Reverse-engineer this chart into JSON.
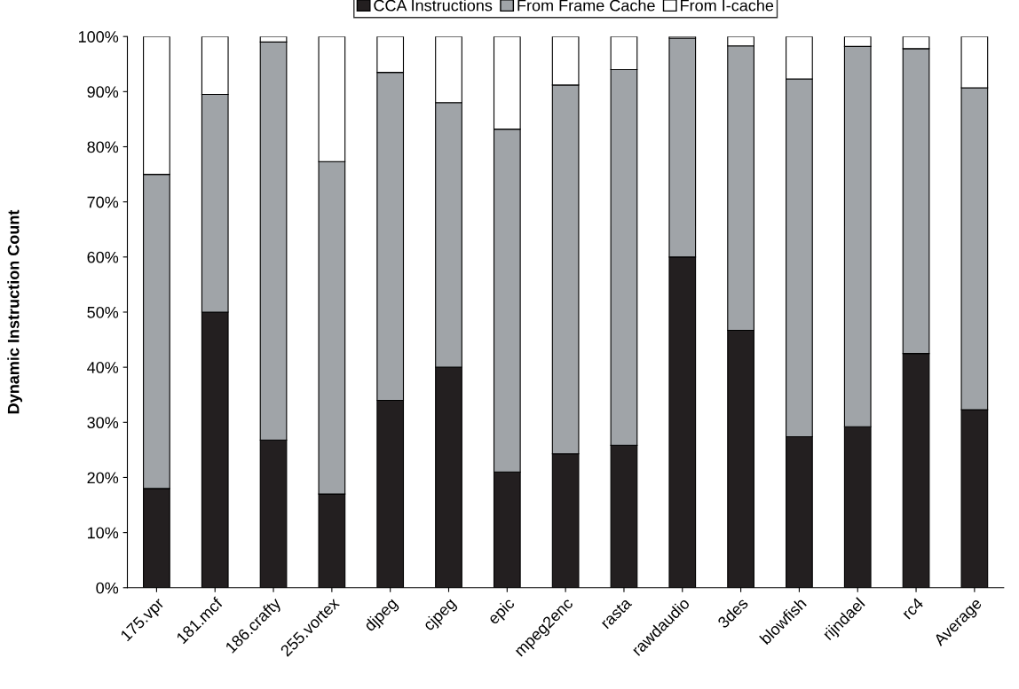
{
  "chart_data": {
    "type": "bar",
    "stacked": true,
    "ylabel": "Dynamic Instruction Count",
    "categories": [
      "175.vpr",
      "181.mcf",
      "186.crafty",
      "255.vortex",
      "djpeg",
      "cjpeg",
      "epic",
      "mpeg2enc",
      "rasta",
      "rawdaudio",
      "3des",
      "blowfish",
      "rijndael",
      "rc4",
      "Average"
    ],
    "series": [
      {
        "name": "CCA Instructions",
        "color": "#231f20",
        "values": [
          18,
          50,
          26.8,
          17,
          34,
          40,
          21,
          24.3,
          25.8,
          60,
          46.7,
          27.4,
          29.2,
          42.5,
          32.3
        ]
      },
      {
        "name": "From Frame Cache",
        "color": "#a0a4a8",
        "values": [
          57,
          39.5,
          72.2,
          60.3,
          59.5,
          48,
          62.2,
          66.9,
          68.2,
          39.7,
          51.6,
          64.9,
          69,
          55.3,
          58.4
        ]
      },
      {
        "name": "From I-cache",
        "color": "#ffffff",
        "values": [
          25,
          10.5,
          1,
          22.7,
          6.5,
          12,
          16.8,
          8.8,
          6,
          0.3,
          1.7,
          7.7,
          1.8,
          2.2,
          9.3
        ]
      }
    ],
    "ylim": [
      0,
      100
    ],
    "yticks": [
      {
        "value": 0,
        "label": "0%"
      },
      {
        "value": 10,
        "label": "10%"
      },
      {
        "value": 20,
        "label": "20%"
      },
      {
        "value": 30,
        "label": "30%"
      },
      {
        "value": 40,
        "label": "40%"
      },
      {
        "value": 50,
        "label": "50%"
      },
      {
        "value": 60,
        "label": "60%"
      },
      {
        "value": 70,
        "label": "70%"
      },
      {
        "value": 80,
        "label": "80%"
      },
      {
        "value": 90,
        "label": "90%"
      },
      {
        "value": 100,
        "label": "100%"
      }
    ],
    "grid": false,
    "legend": "top"
  }
}
